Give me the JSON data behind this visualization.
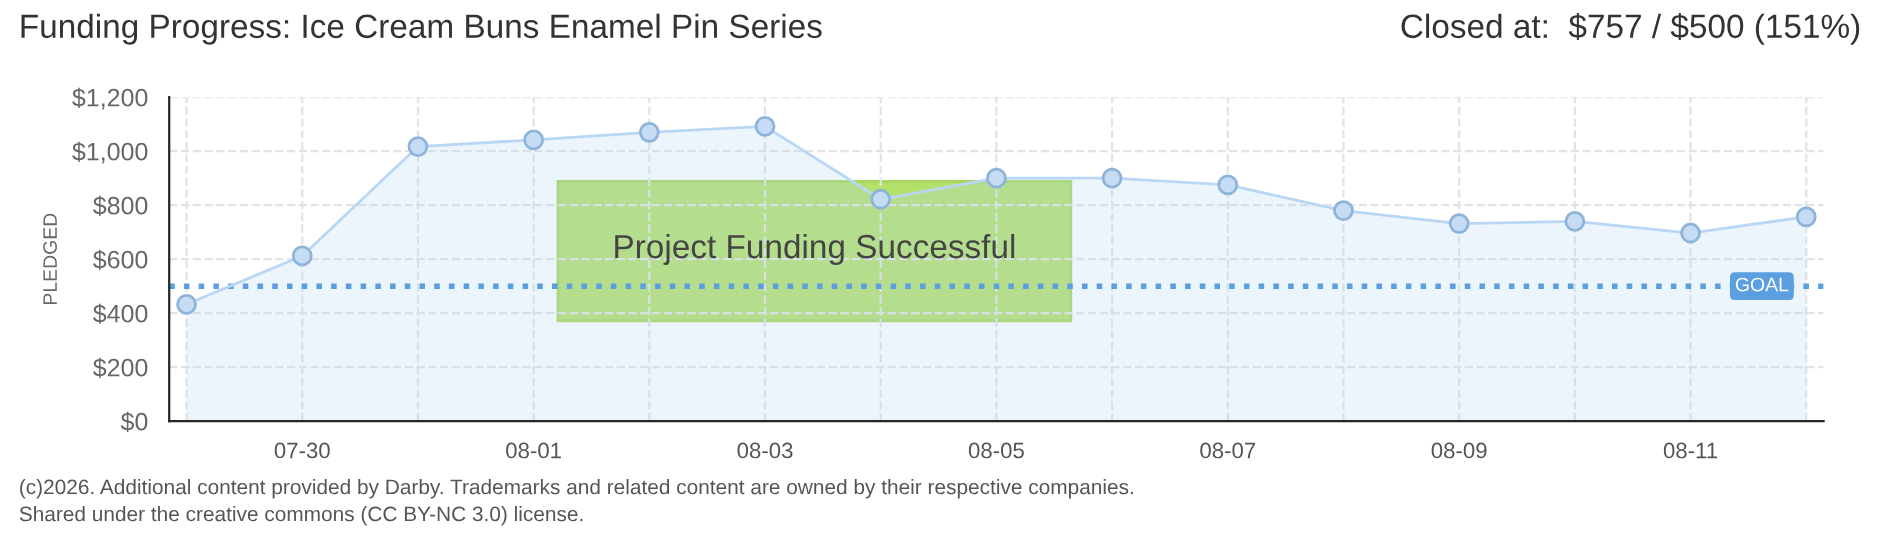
{
  "chart_data": {
    "type": "area",
    "title": "Funding Progress: Ice Cream Buns Enamel Pin Series",
    "subtitle": "Closed at:  $757 / $500 (151%)",
    "ylabel": "PLEDGED",
    "categories": [
      null,
      "07-30",
      null,
      "08-01",
      null,
      "08-03",
      null,
      "08-05",
      null,
      "08-07",
      null,
      "08-09",
      null,
      "08-11",
      null
    ],
    "series": [
      {
        "color": "#b9d7f5",
        "values": [
          433,
          612,
          1017,
          1042,
          1070,
          1092,
          822,
          900,
          900,
          875,
          780,
          732,
          740,
          697,
          757
        ]
      }
    ],
    "ylim": [
      0,
      1200
    ],
    "yticks": [
      {
        "value": 0,
        "label": "$0"
      },
      {
        "value": 200,
        "label": "$200"
      },
      {
        "value": 400,
        "label": "$400"
      },
      {
        "value": 600,
        "label": "$600"
      },
      {
        "value": 800,
        "label": "$800"
      },
      {
        "value": 1000,
        "label": "$1,000"
      },
      {
        "value": 1200,
        "label": "$1,200"
      }
    ],
    "ref_lines": [
      {
        "axis": "y",
        "value": 500,
        "label": "GOAL",
        "color": "#5b9fe0",
        "line_style": "dotted"
      }
    ],
    "grid": true,
    "marker": "circle",
    "line_style": "solid",
    "annotations": [
      "Project Funding Successful",
      "(c)2026. Additional content provided by Darby. Trademarks and related content are owned by their respective companies.",
      "Shared under the creative commons (CC BY-NC 3.0) license."
    ]
  }
}
